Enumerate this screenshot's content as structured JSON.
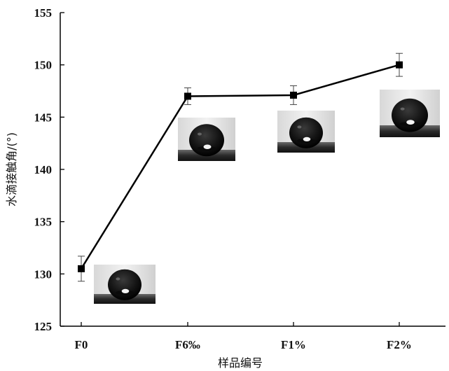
{
  "chart_data": {
    "type": "line",
    "categories": [
      "F0",
      "F6‰",
      "F1%",
      "F2%"
    ],
    "series": [
      {
        "values": [
          130.5,
          147.0,
          147.1,
          150.0
        ],
        "error": [
          1.2,
          0.8,
          0.9,
          1.1
        ]
      }
    ],
    "xlabel": "样品编号",
    "ylabel": "水滴接触角/(°)",
    "ylim": [
      125,
      155
    ],
    "yticks": [
      125,
      130,
      135,
      140,
      145,
      150,
      155
    ],
    "grid": false,
    "marker": "square",
    "line_color": "#000000",
    "annotations": [
      "water-droplet-photo-F0",
      "water-droplet-photo-F6‰",
      "water-droplet-photo-F1%",
      "water-droplet-photo-F2%"
    ]
  }
}
